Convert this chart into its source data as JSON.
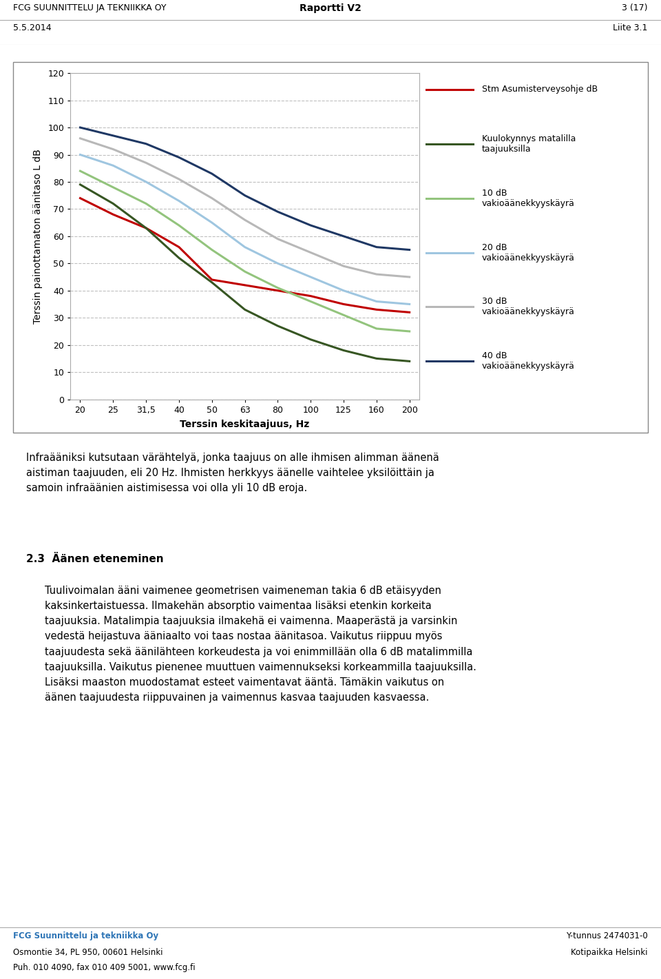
{
  "xlabel": "Terssin keskitaajuus, Hz",
  "ylabel": "Terssin painottamaton äänitaso L dB",
  "ylim": [
    0,
    120
  ],
  "yticks": [
    0,
    10,
    20,
    30,
    40,
    50,
    60,
    70,
    80,
    90,
    100,
    110,
    120
  ],
  "xtick_labels": [
    "20",
    "25",
    "31,5",
    "40",
    "50",
    "63",
    "80",
    "100",
    "125",
    "160",
    "200"
  ],
  "xtick_values": [
    0,
    1,
    2,
    3,
    4,
    5,
    6,
    7,
    8,
    9,
    10
  ],
  "lines": [
    {
      "label": "Stm Asumisterveysohje dB",
      "color": "#C00000",
      "linewidth": 2.2,
      "y": [
        74,
        68,
        63,
        56,
        44,
        42,
        40,
        38,
        35,
        33,
        32
      ]
    },
    {
      "label": "Kuulokynnys matalilla\ntaajuuksilla",
      "color": "#375623",
      "linewidth": 2.2,
      "y": [
        79,
        72,
        63,
        52,
        43,
        33,
        27,
        22,
        18,
        15,
        14
      ]
    },
    {
      "label": "10 dB\nvakioäänekkyyskäyrä",
      "color": "#93C47D",
      "linewidth": 2.2,
      "y": [
        84,
        78,
        72,
        64,
        55,
        47,
        41,
        36,
        31,
        26,
        25
      ]
    },
    {
      "label": "20 dB\nvakioäänekkyyskäyrä",
      "color": "#9FC6E0",
      "linewidth": 2.2,
      "y": [
        90,
        86,
        80,
        73,
        65,
        56,
        50,
        45,
        40,
        36,
        35
      ]
    },
    {
      "label": "30 dB\nvakioäänekkyyskäyrä",
      "color": "#B8B8B8",
      "linewidth": 2.2,
      "y": [
        96,
        92,
        87,
        81,
        74,
        66,
        59,
        54,
        49,
        46,
        45
      ]
    },
    {
      "label": "40 dB\nvakioäänekkyyskäyrä",
      "color": "#1F3864",
      "linewidth": 2.2,
      "y": [
        100,
        97,
        94,
        89,
        83,
        75,
        69,
        64,
        60,
        56,
        55
      ]
    }
  ],
  "header_left": "FCG SUUNNITTELU JA TEKNIIKKA OY",
  "header_center": "Raportti V2",
  "header_right": "3 (17)",
  "subheader_left": "5.5.2014",
  "subheader_right": "Liite 3.1",
  "body_text": "Infraääniksi kutsutaan värähtelyä, jonka taajuus on alle ihmisen alimman äänenä\naistiman taajuuden, eli 20 Hz. Ihmisten herkkyys äänelle vaihtelee yksilöittäin ja\nsamoin infraäänien aistimisessa voi olla yli 10 dB eroja.",
  "section_heading": "2.3  Äänen eteneminen",
  "body_text2": "Tuulivoimalan ääni vaimenee geometrisen vaimeneman takia 6 dB etäisyyden\nkaksinkertaistuessa. Ilmakehän absorptio vaimentaa lisäksi etenkin korkeita\ntaajuuksia. Matalimpia taajuuksia ilmakehä ei vaimenna. Maaperästä ja varsinkin\nvedestä heijastuva ääniaalto voi taas nostaa äänitasoa. Vaikutus riippuu myös\ntaajuudesta sekä äänilähteen korkeudesta ja voi enimmillään olla 6 dB matalimmilla\ntaajuuksilla. Vaikutus pienenee muuttuen vaimennukseksi korkeammilla taajuuksilla.\nLisäksi maaston muodostamat esteet vaimentavat ääntä. Tämäkin vaikutus on\näänen taajuudesta riippuvainen ja vaimennus kasvaa taajuuden kasvaessa.",
  "footer_left1": "FCG Suunnittelu ja tekniikka Oy",
  "footer_left2": "Osmontie 34, PL 950, 00601 Helsinki",
  "footer_left3": "Puh. 010 4090, fax 010 409 5001, www.fcg.fi",
  "footer_right1": "Y-tunnus 2474031-0",
  "footer_right2": "Kotipaikka Helsinki",
  "grid_color": "#BFBFBF"
}
